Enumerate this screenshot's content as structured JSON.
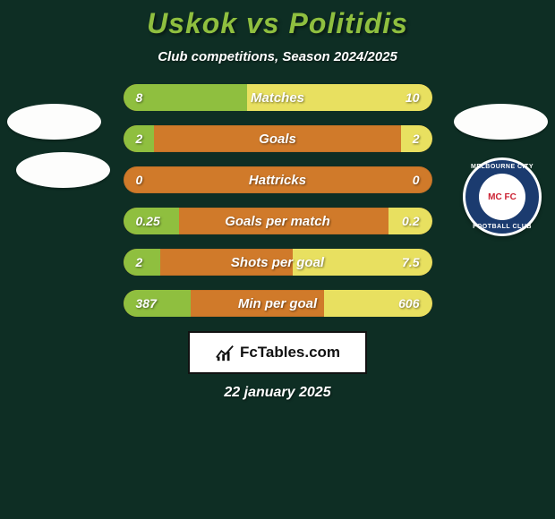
{
  "colors": {
    "background": "#0e2e24",
    "title": "#8fbf3f",
    "subtitle": "#ffffff",
    "text": "#ffffff",
    "row_bg": "#d07a2a",
    "fill_left": "#8fbf3f",
    "fill_right": "#e8e060"
  },
  "title": "Uskok vs Politidis",
  "subtitle": "Club competitions, Season 2024/2025",
  "badge": {
    "top_text": "MELBOURNE CITY",
    "bottom_text": "FOOTBALL CLUB",
    "center": "MC FC"
  },
  "stats": [
    {
      "label": "Matches",
      "left_val": "8",
      "right_val": "10",
      "left_pct": 40,
      "right_pct": 60
    },
    {
      "label": "Goals",
      "left_val": "2",
      "right_val": "2",
      "left_pct": 10,
      "right_pct": 10
    },
    {
      "label": "Hattricks",
      "left_val": "0",
      "right_val": "0",
      "left_pct": 0,
      "right_pct": 0
    },
    {
      "label": "Goals per match",
      "left_val": "0.25",
      "right_val": "0.2",
      "left_pct": 18,
      "right_pct": 14
    },
    {
      "label": "Shots per goal",
      "left_val": "2",
      "right_val": "7.5",
      "left_pct": 12,
      "right_pct": 45
    },
    {
      "label": "Min per goal",
      "left_val": "387",
      "right_val": "606",
      "left_pct": 22,
      "right_pct": 35
    }
  ],
  "branding": "FcTables.com",
  "date": "22 january 2025"
}
